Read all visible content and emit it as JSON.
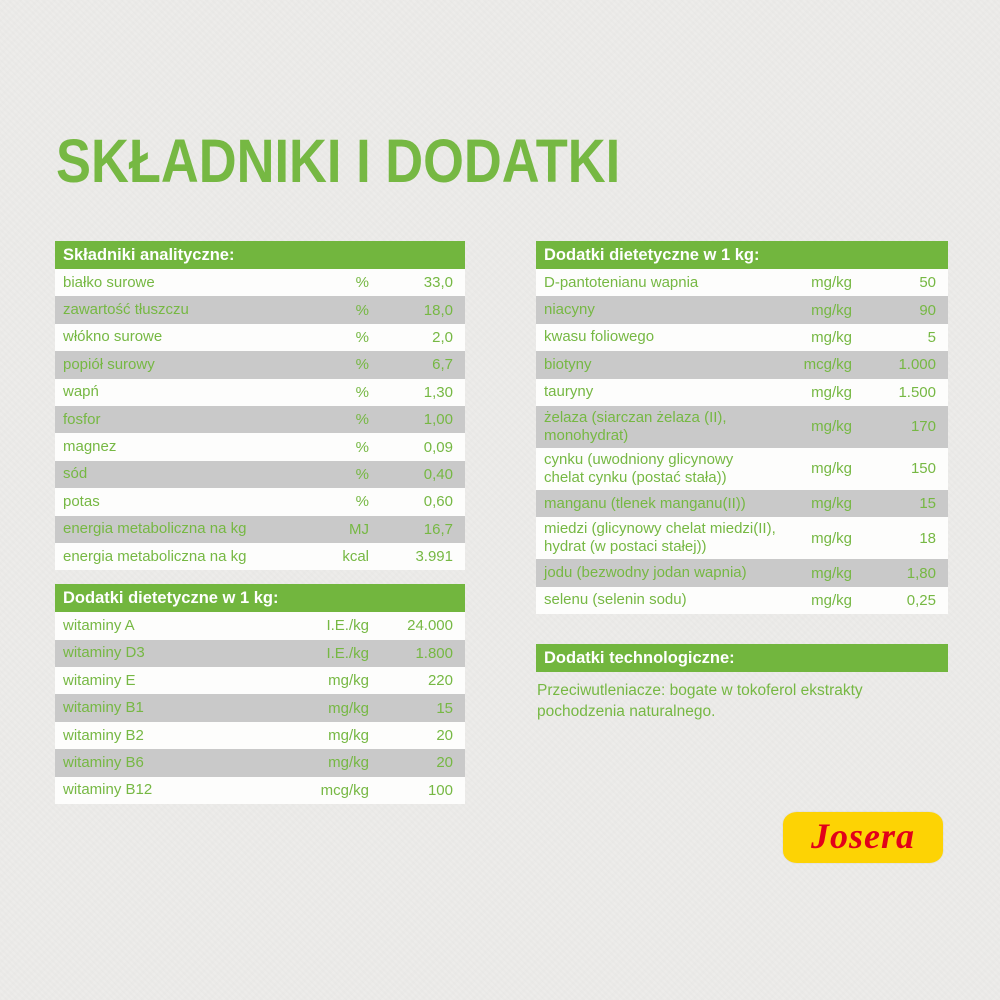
{
  "page": {
    "title": "SKŁADNIKI I DODATKI"
  },
  "colors": {
    "green_header": "#72b63e",
    "green_text": "#76b843",
    "gray_row": "#c9c9c9",
    "background": "#edecea",
    "logo_yellow": "#fdd304",
    "logo_red": "#e2001a"
  },
  "tables": {
    "analytical": {
      "header": "Składniki analityczne:",
      "rows": [
        {
          "label": "białko surowe",
          "unit": "%",
          "value": "33,0"
        },
        {
          "label": "zawartość tłuszczu",
          "unit": "%",
          "value": "18,0"
        },
        {
          "label": "włókno surowe",
          "unit": "%",
          "value": "2,0"
        },
        {
          "label": "popiół surowy",
          "unit": "%",
          "value": "6,7"
        },
        {
          "label": "wapń",
          "unit": "%",
          "value": "1,30"
        },
        {
          "label": "fosfor",
          "unit": "%",
          "value": "1,00"
        },
        {
          "label": "magnez",
          "unit": "%",
          "value": "0,09"
        },
        {
          "label": "sód",
          "unit": "%",
          "value": "0,40"
        },
        {
          "label": "potas",
          "unit": "%",
          "value": "0,60"
        },
        {
          "label": "energia metaboliczna na kg",
          "unit": "MJ",
          "value": "16,7"
        },
        {
          "label": "energia metaboliczna na kg",
          "unit": "kcal",
          "value": "3.991"
        }
      ]
    },
    "dietary_vitamins": {
      "header": "Dodatki dietetyczne w 1 kg:",
      "rows": [
        {
          "label": "witaminy A",
          "unit": "I.E./kg",
          "value": "24.000"
        },
        {
          "label": "witaminy D3",
          "unit": "I.E./kg",
          "value": "1.800"
        },
        {
          "label": "witaminy E",
          "unit": "mg/kg",
          "value": "220"
        },
        {
          "label": "witaminy B1",
          "unit": "mg/kg",
          "value": "15"
        },
        {
          "label": "witaminy B2",
          "unit": "mg/kg",
          "value": "20"
        },
        {
          "label": "witaminy B6",
          "unit": "mg/kg",
          "value": "20"
        },
        {
          "label": "witaminy B12",
          "unit": "mcg/kg",
          "value": "100"
        }
      ]
    },
    "dietary_minerals": {
      "header": "Dodatki dietetyczne w 1 kg:",
      "rows": [
        {
          "label": "D-pantotenianu wapnia",
          "unit": "mg/kg",
          "value": "50"
        },
        {
          "label": "niacyny",
          "unit": "mg/kg",
          "value": "90"
        },
        {
          "label": "kwasu foliowego",
          "unit": "mg/kg",
          "value": "5"
        },
        {
          "label": "biotyny",
          "unit": "mcg/kg",
          "value": "1.000"
        },
        {
          "label": "tauryny",
          "unit": "mg/kg",
          "value": "1.500"
        },
        {
          "label": "żelaza (siarczan żelaza (II), monohydrat)",
          "unit": "mg/kg",
          "value": "170"
        },
        {
          "label": "cynku (uwodniony glicynowy chelat cynku (postać stała))",
          "unit": "mg/kg",
          "value": "150"
        },
        {
          "label": "manganu (tlenek manganu(II))",
          "unit": "mg/kg",
          "value": "15"
        },
        {
          "label": "miedzi (glicynowy chelat miedzi(II), hydrat (w postaci stałej))",
          "unit": "mg/kg",
          "value": "18"
        },
        {
          "label": "jodu (bezwodny jodan wapnia)",
          "unit": "mg/kg",
          "value": "1,80"
        },
        {
          "label": "selenu (selenin sodu)",
          "unit": "mg/kg",
          "value": "0,25"
        }
      ]
    },
    "technological": {
      "header": "Dodatki technologiczne:",
      "text": "Przeciwutleniacze: bogate w tokoferol ekstrakty pochodzenia naturalnego."
    }
  },
  "logo": {
    "text": "Josera"
  }
}
